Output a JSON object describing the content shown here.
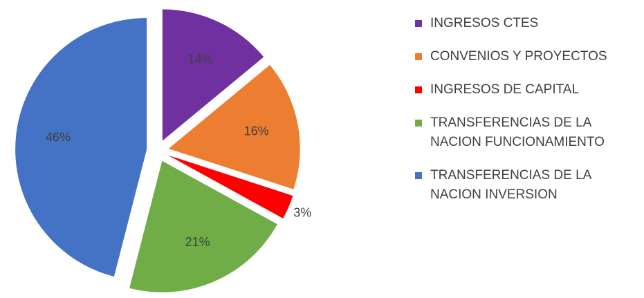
{
  "chart_data": {
    "type": "pie",
    "categories": [
      "INGRESOS CTES",
      "CONVENIOS Y PROYECTOS",
      "INGRESOS DE CAPITAL",
      "TRANSFERENCIAS DE LA NACION FUNCIONAMIENTO",
      "TRANSFERENCIAS DE LA NACION INVERSION"
    ],
    "values": [
      14,
      16,
      3,
      21,
      46
    ],
    "value_labels": [
      "14%",
      "16%",
      "3%",
      "21%",
      "46%"
    ],
    "colors": [
      "#7030a0",
      "#ed7d31",
      "#ff0000",
      "#70ad47",
      "#4472c4"
    ],
    "exploded": true,
    "legend": "right"
  }
}
